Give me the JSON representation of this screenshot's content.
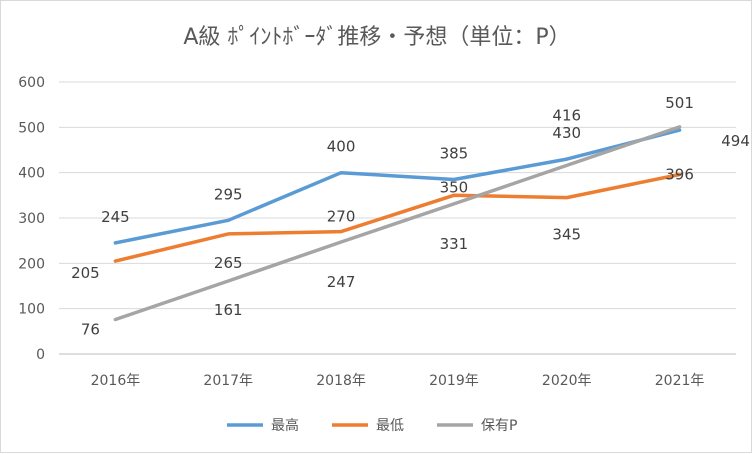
{
  "chart_data": {
    "type": "line",
    "title": "A級 ﾎﾟｲﾝﾄﾎﾞｰﾀﾞ推移・予想（単位：P）",
    "categories": [
      "2016年",
      "2017年",
      "2018年",
      "2019年",
      "2020年",
      "2021年"
    ],
    "series": [
      {
        "name": "最高",
        "color": "#5b9bd5",
        "values": [
          245,
          295,
          400,
          385,
          430,
          494
        ]
      },
      {
        "name": "最低",
        "color": "#ed7d31",
        "values": [
          205,
          265,
          270,
          350,
          345,
          396
        ]
      },
      {
        "name": "保有P",
        "color": "#a5a5a5",
        "values": [
          76,
          161,
          247,
          331,
          416,
          501
        ]
      }
    ],
    "ylim": [
      0,
      600
    ],
    "yticks": [
      0,
      100,
      200,
      300,
      400,
      500,
      600
    ],
    "grid": true,
    "legend_position": "bottom"
  }
}
